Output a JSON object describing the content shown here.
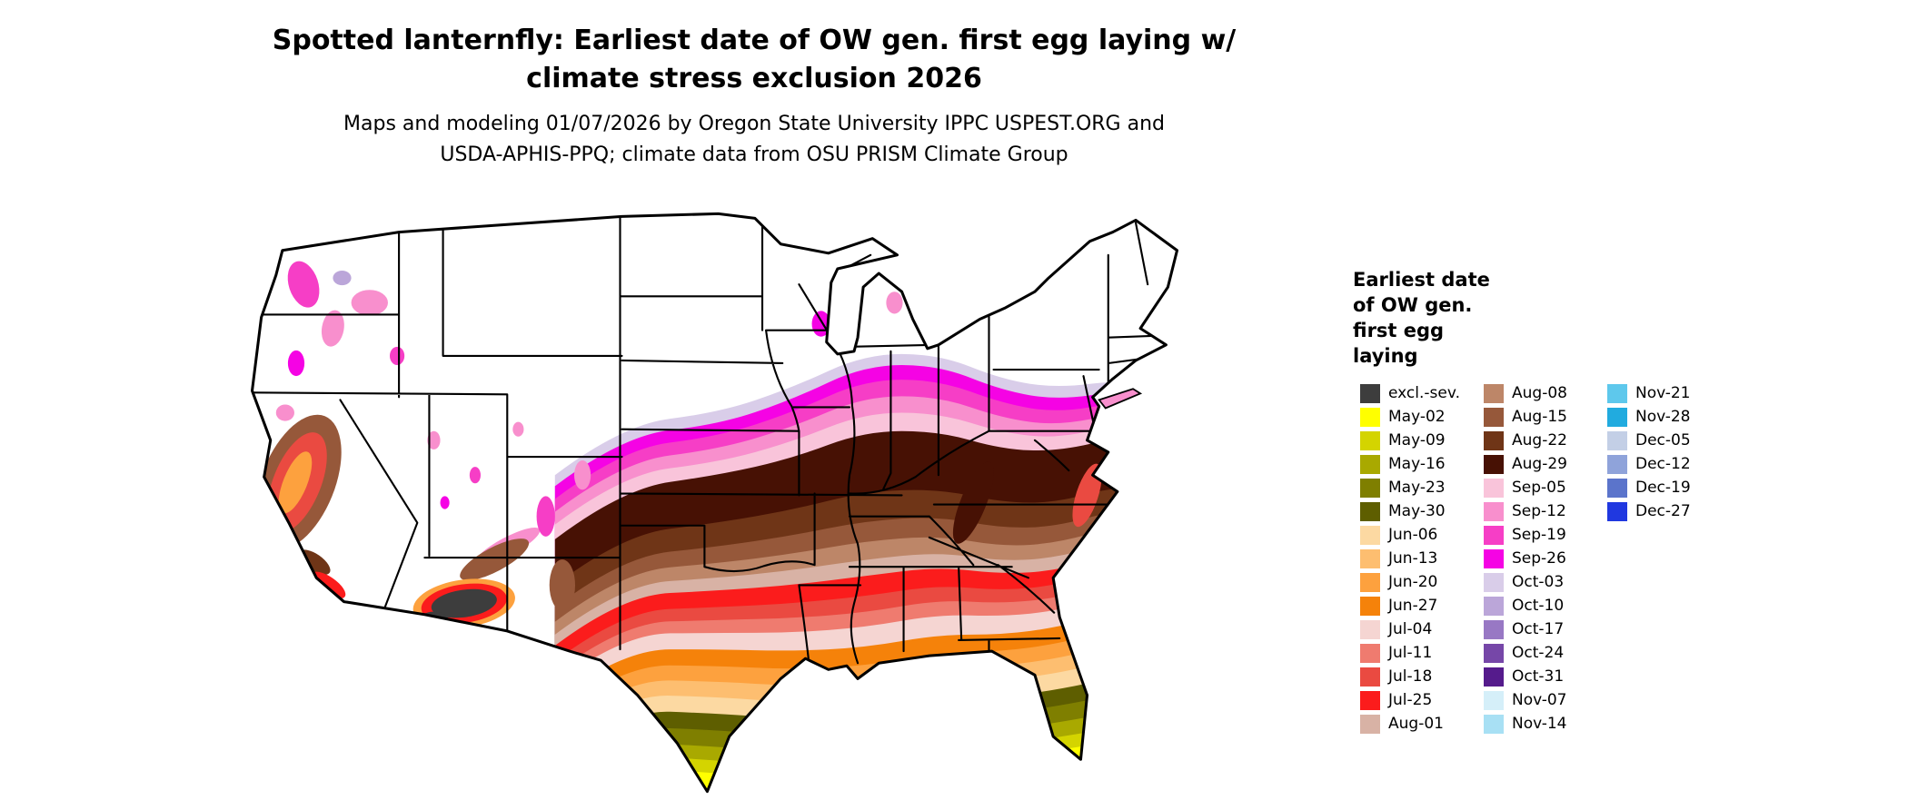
{
  "title": {
    "line1": "Spotted lanternfly: Earliest date of OW gen. first egg laying w/",
    "line2": "climate stress exclusion 2026"
  },
  "subtitle": {
    "line1": "Maps and modeling 01/07/2026 by Oregon State University IPPC USPEST.ORG and",
    "line2": "USDA-APHIS-PPQ; climate data from OSU PRISM Climate Group"
  },
  "legend": {
    "title_lines": [
      "Earliest date",
      "of OW gen.",
      "first egg",
      "laying"
    ],
    "columns": [
      {
        "entries": [
          {
            "label": "excl.-sev.",
            "color": "#3d3d3d"
          },
          {
            "label": "May-02",
            "color": "#ffff00"
          },
          {
            "label": "May-09",
            "color": "#d4d400"
          },
          {
            "label": "May-16",
            "color": "#a9a900"
          },
          {
            "label": "May-23",
            "color": "#7f7f00"
          },
          {
            "label": "May-30",
            "color": "#5e5e00"
          },
          {
            "label": "Jun-06",
            "color": "#fcd9a2"
          },
          {
            "label": "Jun-13",
            "color": "#fdbe70"
          },
          {
            "label": "Jun-20",
            "color": "#fda13e"
          },
          {
            "label": "Jun-27",
            "color": "#f5820a"
          },
          {
            "label": "Jul-04",
            "color": "#f5d5d2"
          },
          {
            "label": "Jul-11",
            "color": "#ef7b6f"
          },
          {
            "label": "Jul-18",
            "color": "#ea4a41"
          },
          {
            "label": "Jul-25",
            "color": "#fb1c1c"
          },
          {
            "label": "Aug-01",
            "color": "#d8b2a5"
          }
        ]
      },
      {
        "entries": [
          {
            "label": "Aug-08",
            "color": "#bd8668"
          },
          {
            "label": "Aug-15",
            "color": "#96583a"
          },
          {
            "label": "Aug-22",
            "color": "#6f3517"
          },
          {
            "label": "Aug-29",
            "color": "#471104"
          },
          {
            "label": "Sep-05",
            "color": "#f9c4da"
          },
          {
            "label": "Sep-12",
            "color": "#f88fcd"
          },
          {
            "label": "Sep-19",
            "color": "#f63ec6"
          },
          {
            "label": "Sep-26",
            "color": "#f503e4"
          },
          {
            "label": "Oct-03",
            "color": "#d9cde9"
          },
          {
            "label": "Oct-10",
            "color": "#bba6d9"
          },
          {
            "label": "Oct-17",
            "color": "#9878c4"
          },
          {
            "label": "Oct-24",
            "color": "#7647a8"
          },
          {
            "label": "Oct-31",
            "color": "#551b8c"
          },
          {
            "label": "Nov-07",
            "color": "#d5eff9"
          },
          {
            "label": "Nov-14",
            "color": "#a8e0f4"
          }
        ]
      },
      {
        "entries": [
          {
            "label": "Nov-21",
            "color": "#5ec8ec"
          },
          {
            "label": "Nov-28",
            "color": "#21abdf"
          },
          {
            "label": "Dec-05",
            "color": "#c3cfe6"
          },
          {
            "label": "Dec-12",
            "color": "#8fa3da"
          },
          {
            "label": "Dec-19",
            "color": "#5b74cb"
          },
          {
            "label": "Dec-27",
            "color": "#2038e0"
          }
        ]
      }
    ]
  }
}
